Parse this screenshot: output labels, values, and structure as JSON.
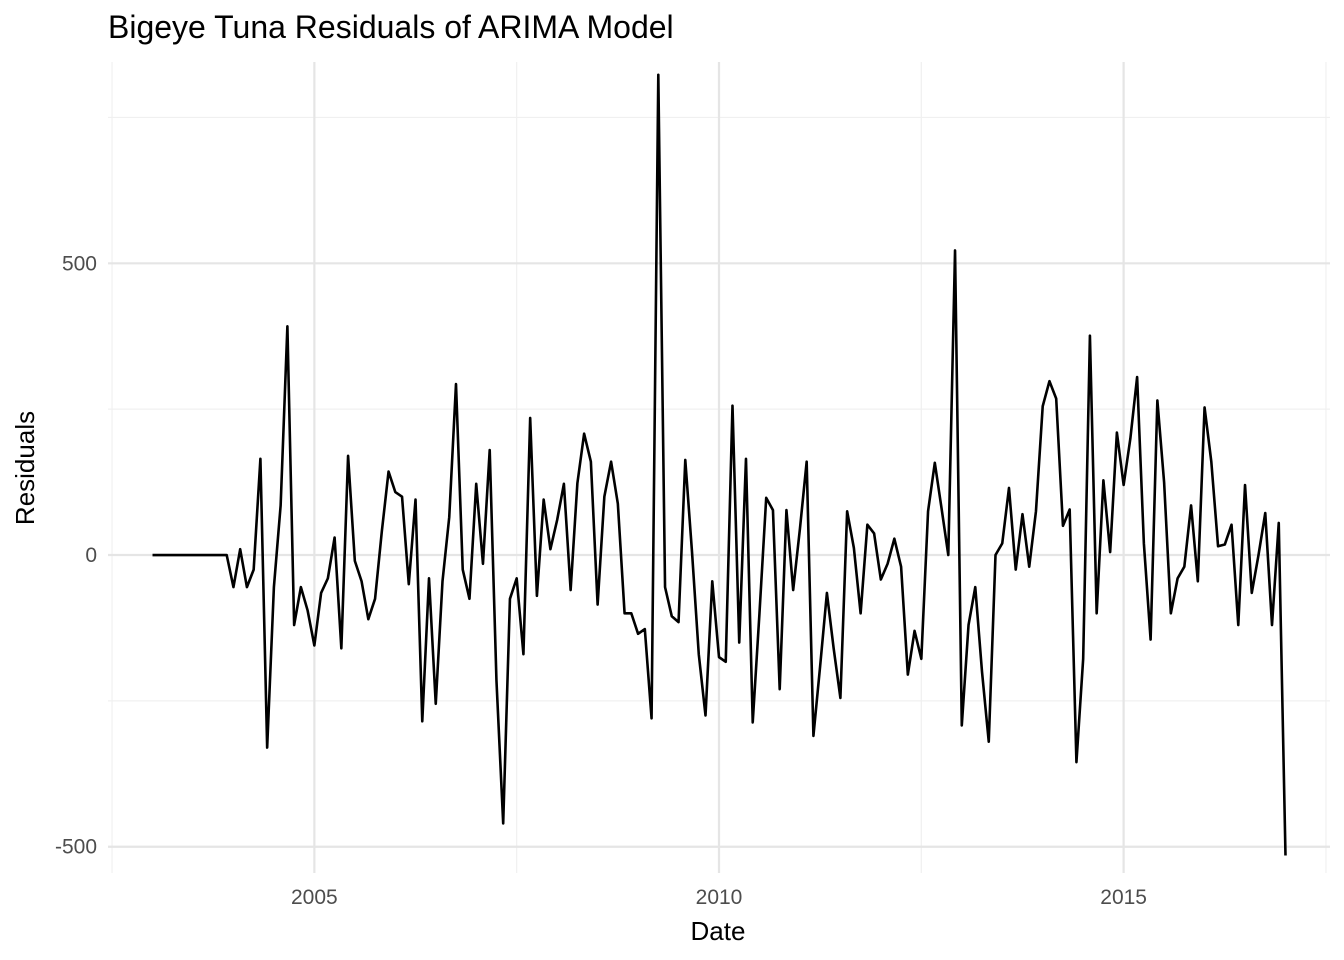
{
  "chart_data": {
    "type": "line",
    "title": "Bigeye Tuna Residuals of ARIMA Model",
    "xlabel": "Date",
    "ylabel": "Residuals",
    "x_tick_labels": [
      "2005",
      "2010",
      "2015"
    ],
    "y_tick_labels": [
      "-500",
      "0",
      "500"
    ],
    "x_ticks": [
      2005,
      2010,
      2015
    ],
    "y_ticks": [
      -500,
      0,
      500
    ],
    "xlim": [
      2002.45,
      2017.55
    ],
    "ylim": [
      -545,
      845
    ],
    "grid": true,
    "legend": "none",
    "series": [
      {
        "color": "#000000",
        "x_start": 2003.0,
        "x_step_months": 1,
        "values": [
          0,
          0,
          0,
          0,
          0,
          0,
          0,
          0,
          0,
          0,
          0,
          0,
          -55,
          10,
          -55,
          -25,
          165,
          -330,
          -55,
          85,
          392,
          -120,
          -55,
          -95,
          -155,
          -65,
          -40,
          30,
          -160,
          170,
          -10,
          -45,
          -110,
          -75,
          40,
          143,
          108,
          100,
          -50,
          95,
          -285,
          -40,
          -255,
          -45,
          65,
          293,
          -25,
          -75,
          122,
          -15,
          180,
          -215,
          -460,
          -75,
          -40,
          -170,
          235,
          -70,
          95,
          10,
          60,
          122,
          -60,
          123,
          208,
          160,
          -85,
          100,
          160,
          88,
          -100,
          -100,
          -135,
          -127,
          -280,
          823,
          -55,
          -105,
          -115,
          163,
          5,
          -170,
          -275,
          -45,
          -175,
          -183,
          256,
          -150,
          165,
          -287,
          -100,
          98,
          77,
          -230,
          77,
          -60,
          45,
          160,
          -310,
          -190,
          -65,
          -160,
          -245,
          75,
          12,
          -100,
          52,
          37,
          -42,
          -15,
          28,
          -20,
          -205,
          -130,
          -178,
          75,
          158,
          80,
          0,
          522,
          -292,
          -120,
          -55,
          -200,
          -320,
          0,
          20,
          115,
          -25,
          70,
          -20,
          75,
          255,
          298,
          268,
          50,
          78,
          -355,
          -178,
          376,
          -100,
          128,
          5,
          210,
          120,
          200,
          305,
          20,
          -145,
          265,
          125,
          -100,
          -40,
          -20,
          85,
          -45,
          253,
          160,
          15,
          18,
          52,
          -120,
          120,
          -65,
          0,
          72,
          -120,
          55,
          -515
        ]
      }
    ]
  }
}
